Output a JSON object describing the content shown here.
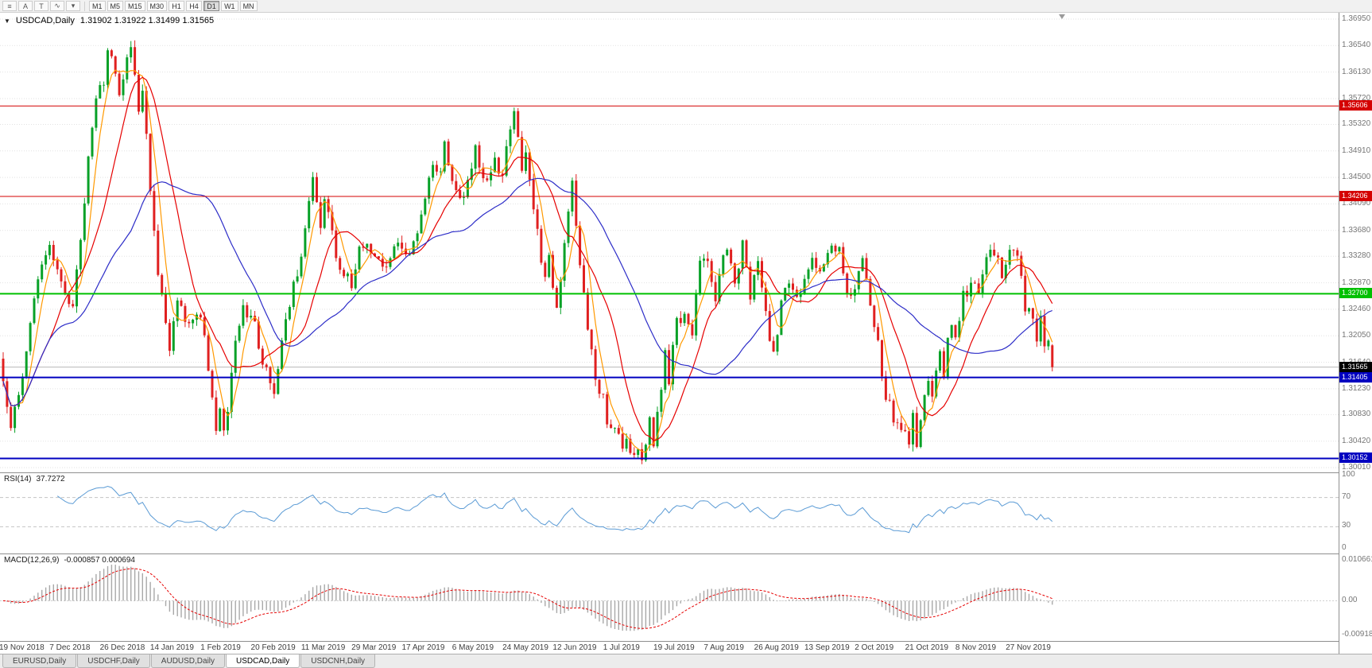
{
  "toolbar": {
    "icons": [
      {
        "name": "charts-list-icon",
        "glyph": "≡"
      },
      {
        "name": "cursor-tool-icon",
        "glyph": "A"
      },
      {
        "name": "text-tool-icon",
        "glyph": "T"
      },
      {
        "name": "draw-tools-icon",
        "glyph": "∿"
      },
      {
        "name": "draw-tools-caret-icon",
        "glyph": "▾"
      }
    ],
    "timeframes": [
      "M1",
      "M5",
      "M15",
      "M30",
      "H1",
      "H4",
      "D1",
      "W1",
      "MN"
    ],
    "active_timeframe": "D1"
  },
  "chart": {
    "expander_glyph": "▼",
    "symbol_title": "USDCAD,Daily",
    "ohlc": "1.31902 1.31922 1.31499 1.31565"
  },
  "chart_data": {
    "type": "candlestick",
    "symbol": "USDCAD",
    "timeframe": "Daily",
    "ohlc_display": {
      "open": 1.31902,
      "high": 1.31922,
      "low": 1.31499,
      "close": 1.31565
    },
    "total_candles": 272,
    "candles_per_label": 13,
    "last_candle": [
      1.31902,
      1.31922,
      1.31499,
      1.31565
    ],
    "candle_colors": {
      "up": "#07a127",
      "down": "#e02020"
    },
    "x_labels": [
      "19 Nov 2018",
      "7 Dec 2018",
      "26 Dec 2018",
      "14 Jan 2019",
      "1 Feb 2019",
      "20 Feb 2019",
      "11 Mar 2019",
      "29 Mar 2019",
      "17 Apr 2019",
      "6 May 2019",
      "24 May 2019",
      "12 Jun 2019",
      "1 Jul 2019",
      "19 Jul 2019",
      "7 Aug 2019",
      "26 Aug 2019",
      "13 Sep 2019",
      "2 Oct 2019",
      "21 Oct 2019",
      "8 Nov 2019",
      "27 Nov 2019"
    ],
    "price_axis": {
      "max": 1.3695,
      "min": 1.3001,
      "labels": [
        "1.36950",
        "1.36540",
        "1.36130",
        "1.35720",
        "1.35320",
        "1.34910",
        "1.34500",
        "1.34090",
        "1.33680",
        "1.33280",
        "1.32870",
        "1.32460",
        "1.32050",
        "1.31640",
        "1.31230",
        "1.30830",
        "1.30420",
        "1.30010"
      ]
    },
    "horizontal_lines": [
      {
        "price": 1.35606,
        "label": "1.35606",
        "color": "#d40000",
        "width": 1
      },
      {
        "price": 1.34206,
        "label": "1.34206",
        "color": "#d40000",
        "width": 1
      },
      {
        "price": 1.327,
        "label": "1.32700",
        "color": "#00c000",
        "width": 2
      },
      {
        "price": 1.31405,
        "label": "1.31405",
        "color": "#0000c0",
        "width": 2
      },
      {
        "price": 1.30152,
        "label": "1.30152",
        "color": "#0000c0",
        "width": 2
      }
    ],
    "current_price": {
      "value": 1.31565,
      "label": "1.31565",
      "color": "#000000"
    },
    "moving_averages": [
      {
        "name": "ma-fast",
        "period": 5,
        "color": "#ff9900"
      },
      {
        "name": "ma-mid",
        "period": 13,
        "color": "#e60000"
      },
      {
        "name": "ma-slow",
        "period": 34,
        "color": "#2d2dc8"
      }
    ],
    "close_anchors": [
      [
        0,
        1.3145
      ],
      [
        2,
        1.3062
      ],
      [
        5,
        1.315
      ],
      [
        9,
        1.329
      ],
      [
        12,
        1.334
      ],
      [
        16,
        1.3262
      ],
      [
        18,
        1.3248
      ],
      [
        21,
        1.342
      ],
      [
        24,
        1.3575
      ],
      [
        26,
        1.359
      ],
      [
        27,
        1.365
      ],
      [
        30,
        1.358
      ],
      [
        33,
        1.3662
      ],
      [
        35,
        1.356
      ],
      [
        36,
        1.3595
      ],
      [
        38,
        1.342
      ],
      [
        40,
        1.33
      ],
      [
        43,
        1.319
      ],
      [
        45,
        1.3262
      ],
      [
        48,
        1.3215
      ],
      [
        50,
        1.324
      ],
      [
        52,
        1.3215
      ],
      [
        53,
        1.316
      ],
      [
        55,
        1.3048
      ],
      [
        56,
        1.3085
      ],
      [
        57,
        1.305
      ],
      [
        60,
        1.319
      ],
      [
        62,
        1.3248
      ],
      [
        65,
        1.3228
      ],
      [
        67,
        1.316
      ],
      [
        70,
        1.3122
      ],
      [
        73,
        1.324
      ],
      [
        76,
        1.33
      ],
      [
        80,
        1.3445
      ],
      [
        82,
        1.338
      ],
      [
        83,
        1.342
      ],
      [
        86,
        1.333
      ],
      [
        90,
        1.328
      ],
      [
        92,
        1.335
      ],
      [
        95,
        1.3332
      ],
      [
        98,
        1.3308
      ],
      [
        101,
        1.335
      ],
      [
        104,
        1.3328
      ],
      [
        106,
        1.3342
      ],
      [
        108,
        1.34
      ],
      [
        111,
        1.348
      ],
      [
        113,
        1.3452
      ],
      [
        114,
        1.35
      ],
      [
        116,
        1.3438
      ],
      [
        119,
        1.3412
      ],
      [
        122,
        1.3495
      ],
      [
        124,
        1.3438
      ],
      [
        127,
        1.3472
      ],
      [
        129,
        1.346
      ],
      [
        131,
        1.352
      ],
      [
        132,
        1.3548
      ],
      [
        134,
        1.3458
      ],
      [
        135,
        1.3488
      ],
      [
        137,
        1.3408
      ],
      [
        140,
        1.3288
      ],
      [
        141,
        1.332
      ],
      [
        143,
        1.3248
      ],
      [
        145,
        1.334
      ],
      [
        147,
        1.3438
      ],
      [
        150,
        1.3268
      ],
      [
        153,
        1.3128
      ],
      [
        155,
        1.3108
      ],
      [
        156,
        1.3068
      ],
      [
        158,
        1.3052
      ],
      [
        160,
        1.3038
      ],
      [
        162,
        1.3032
      ],
      [
        164,
        1.3028
      ],
      [
        165,
        1.3016
      ],
      [
        167,
        1.3072
      ],
      [
        168,
        1.3042
      ],
      [
        171,
        1.3172
      ],
      [
        172,
        1.3138
      ],
      [
        174,
        1.3222
      ],
      [
        176,
        1.3238
      ],
      [
        178,
        1.321
      ],
      [
        180,
        1.3312
      ],
      [
        182,
        1.3325
      ],
      [
        184,
        1.3268
      ],
      [
        187,
        1.3348
      ],
      [
        189,
        1.3278
      ],
      [
        191,
        1.3342
      ],
      [
        193,
        1.3268
      ],
      [
        195,
        1.3322
      ],
      [
        197,
        1.3242
      ],
      [
        199,
        1.3172
      ],
      [
        202,
        1.3288
      ],
      [
        204,
        1.3282
      ],
      [
        206,
        1.3268
      ],
      [
        209,
        1.3322
      ],
      [
        211,
        1.3298
      ],
      [
        214,
        1.3348
      ],
      [
        216,
        1.3338
      ],
      [
        218,
        1.3268
      ],
      [
        220,
        1.3272
      ],
      [
        222,
        1.3332
      ],
      [
        225,
        1.3228
      ],
      [
        228,
        1.3108
      ],
      [
        231,
        1.3068
      ],
      [
        234,
        1.3042
      ],
      [
        235,
        1.3078
      ],
      [
        236,
        1.3038
      ],
      [
        239,
        1.3135
      ],
      [
        240,
        1.3108
      ],
      [
        242,
        1.3188
      ],
      [
        243,
        1.3152
      ],
      [
        245,
        1.3232
      ],
      [
        246,
        1.3198
      ],
      [
        248,
        1.3272
      ],
      [
        250,
        1.3278
      ],
      [
        252,
        1.3272
      ],
      [
        254,
        1.3332
      ],
      [
        256,
        1.3328
      ],
      [
        258,
        1.3305
      ],
      [
        260,
        1.333
      ],
      [
        262,
        1.3328
      ],
      [
        264,
        1.3252
      ],
      [
        266,
        1.3238
      ],
      [
        267,
        1.3198
      ],
      [
        268,
        1.3232
      ],
      [
        269,
        1.3188
      ],
      [
        270,
        1.319
      ],
      [
        271,
        1.31565
      ]
    ],
    "rsi": {
      "label": "RSI(14)",
      "value": "37.7272",
      "period": 14,
      "levels": [
        70,
        30
      ],
      "scale_labels": [
        "100",
        "70",
        "30",
        "0"
      ],
      "color": "#5b9bd5"
    },
    "macd": {
      "label": "MACD(12,26,9)",
      "values": "-0.000857 0.000694",
      "axis_labels": [
        "0.0106615",
        "0.00",
        "-0.00918"
      ],
      "axis_max": 0.0106615,
      "axis_min": -0.00918,
      "histogram_color": "#a8a8a8",
      "signal_color": "#e60000"
    }
  },
  "tabs": [
    {
      "label": "EURUSD,Daily",
      "active": false
    },
    {
      "label": "USDCHF,Daily",
      "active": false
    },
    {
      "label": "AUDUSD,Daily",
      "active": false
    },
    {
      "label": "USDCAD,Daily",
      "active": true
    },
    {
      "label": "USDCNH,Daily",
      "active": false
    }
  ]
}
